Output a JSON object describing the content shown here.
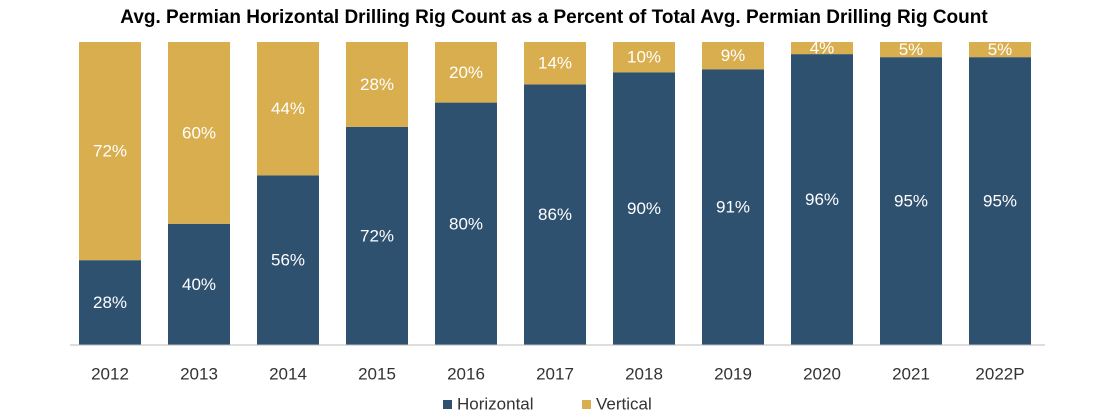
{
  "chart_data": {
    "type": "stacked_bar",
    "title": "Avg. Permian Horizontal Drilling Rig Count as a Percent of Total Avg. Permian Drilling Rig Count",
    "categories": [
      "2012",
      "2013",
      "2014",
      "2015",
      "2016",
      "2017",
      "2018",
      "2019",
      "2020",
      "2021",
      "2022P"
    ],
    "series": [
      {
        "name": "Horizontal",
        "color": "#2e5170",
        "values": [
          28,
          40,
          56,
          72,
          80,
          86,
          90,
          91,
          96,
          95,
          95
        ],
        "value_labels": [
          "28%",
          "40%",
          "56%",
          "72%",
          "80%",
          "86%",
          "90%",
          "91%",
          "96%",
          "95%",
          "95%"
        ]
      },
      {
        "name": "Vertical",
        "color": "#d9ae4f",
        "values": [
          72,
          60,
          44,
          28,
          20,
          14,
          10,
          9,
          4,
          5,
          5
        ],
        "value_labels": [
          "72%",
          "60%",
          "44%",
          "28%",
          "20%",
          "14%",
          "10%",
          "9%",
          "4%",
          "5%",
          "5%"
        ]
      }
    ],
    "ylim": [
      0,
      100
    ],
    "legend": "bottom"
  }
}
